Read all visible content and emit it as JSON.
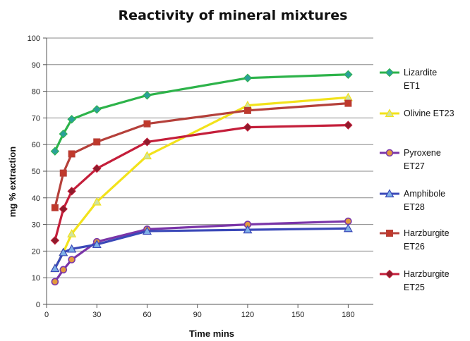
{
  "chart_data": {
    "type": "line",
    "title": "Reactivity of mineral mixtures",
    "xlabel": "Time mins",
    "ylabel": "mg % extraction",
    "xlim": [
      0,
      195
    ],
    "ylim": [
      0,
      100
    ],
    "xticks": [
      "0",
      "30",
      "60",
      "90",
      "120",
      "150",
      "180"
    ],
    "yticks": [
      "0",
      "10",
      "20",
      "30",
      "40",
      "50",
      "60",
      "70",
      "80",
      "90",
      "100"
    ],
    "grid": "horizontal",
    "legend_position": "right",
    "series": [
      {
        "name": "Lizardite ET1",
        "legend_lines": [
          "Lizardite",
          "ET1"
        ],
        "color": "#2db34a",
        "marker": "diamond",
        "marker_fill": "#2aa198",
        "x": [
          5,
          10,
          15,
          30,
          60,
          120,
          180
        ],
        "values": [
          57.5,
          64,
          69.5,
          73.2,
          78.5,
          85,
          86.3
        ]
      },
      {
        "name": "Olivine ET23",
        "legend_lines": [
          "Olivine ET23"
        ],
        "color": "#f2e21b",
        "marker": "triangle",
        "marker_fill": "#cfe3a0",
        "x": [
          5,
          10,
          15,
          30,
          60,
          120,
          180
        ],
        "values": [
          13.5,
          19.5,
          26.5,
          38.5,
          55.8,
          74.7,
          77.7
        ]
      },
      {
        "name": "Pyroxene ET27",
        "legend_lines": [
          "Pyroxene",
          "ET27"
        ],
        "color": "#7a35a8",
        "marker": "circle",
        "marker_fill": "#e39a3c",
        "x": [
          5,
          10,
          15,
          30,
          60,
          120,
          180
        ],
        "values": [
          8.5,
          13,
          16.8,
          23.5,
          28.2,
          30,
          31.2
        ]
      },
      {
        "name": "Amphibole ET28",
        "legend_lines": [
          "Amphibole",
          "ET28"
        ],
        "color": "#3a48b8",
        "marker": "triangle",
        "marker_fill": "#7fb0e6",
        "x": [
          5,
          10,
          15,
          30,
          60,
          120,
          180
        ],
        "values": [
          13.5,
          19.5,
          20.8,
          22.5,
          27.5,
          28,
          28.5
        ]
      },
      {
        "name": "Harzburgite ET26",
        "legend_lines": [
          "Harzburgite",
          "ET26"
        ],
        "color": "#b5403a",
        "marker": "square",
        "marker_fill": "#c0392b",
        "x": [
          5,
          10,
          15,
          30,
          60,
          120,
          180
        ],
        "values": [
          36.3,
          49.3,
          56.5,
          61,
          67.8,
          72.8,
          75.5
        ]
      },
      {
        "name": "Harzburgite ET25",
        "legend_lines": [
          "Harzburgite",
          "ET25"
        ],
        "color": "#c41e3a",
        "marker": "diamond",
        "marker_fill": "#8e1b2c",
        "x": [
          5,
          10,
          15,
          30,
          60,
          120,
          180
        ],
        "values": [
          24,
          35.8,
          42.5,
          51,
          61,
          66.5,
          67.3
        ]
      }
    ]
  }
}
